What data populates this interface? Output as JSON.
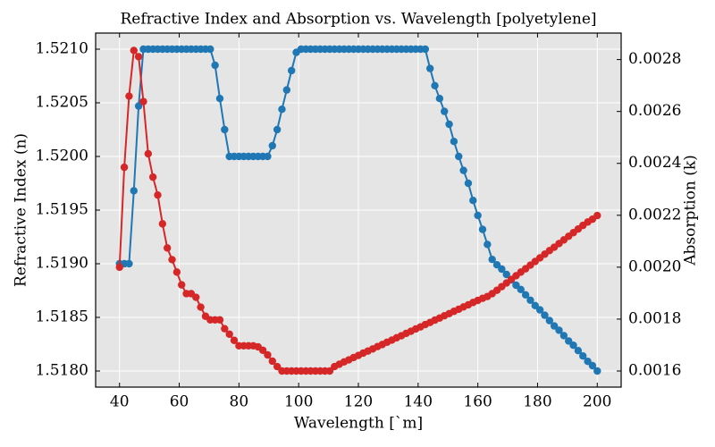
{
  "chart_data": {
    "type": "line",
    "title": "Refractive Index and Absorption vs. Wavelength [polyetylene]",
    "x_label": "Wavelength [`m]",
    "y_label": "Refractive Index (n)",
    "y2_label": "Absorption (k)",
    "grid": true,
    "x": [
      40,
      41.6,
      43.2,
      44.8,
      46.4,
      48,
      49.6,
      51.2,
      52.8,
      54.4,
      56,
      57.6,
      59.2,
      60.8,
      62.4,
      64,
      65.6,
      67.2,
      68.8,
      70.4,
      72,
      73.6,
      75.2,
      76.8,
      78.4,
      80,
      81.6,
      83.2,
      84.8,
      86.4,
      88,
      89.6,
      91.2,
      92.8,
      94.4,
      96,
      97.6,
      99.2,
      100.8,
      102.4,
      104,
      105.6,
      107.2,
      108.8,
      110.4,
      112,
      113.6,
      115.2,
      116.8,
      118.4,
      120,
      121.6,
      123.2,
      124.8,
      126.4,
      128,
      129.6,
      131.2,
      132.8,
      134.4,
      136,
      137.6,
      139.2,
      140.8,
      142.4,
      144,
      145.6,
      147.2,
      148.8,
      150.4,
      152,
      153.6,
      155.2,
      156.8,
      158.4,
      160,
      161.6,
      163.2,
      164.8,
      166.4,
      168,
      169.6,
      171.2,
      172.8,
      174.4,
      176,
      177.6,
      179.2,
      180.8,
      182.4,
      184,
      185.6,
      187.2,
      188.8,
      190.4,
      192,
      193.6,
      195.2,
      196.8,
      198.4,
      200
    ],
    "series": [
      {
        "color": "#1f77b4",
        "axis": "y",
        "values": [
          1.519,
          1.519,
          1.519,
          1.51968,
          1.52047,
          1.521,
          1.521,
          1.521,
          1.521,
          1.521,
          1.521,
          1.521,
          1.521,
          1.521,
          1.521,
          1.521,
          1.521,
          1.521,
          1.521,
          1.521,
          1.52085,
          1.52054,
          1.52025,
          1.52,
          1.52,
          1.52,
          1.52,
          1.52,
          1.52,
          1.52,
          1.52,
          1.52,
          1.5201,
          1.52025,
          1.52044,
          1.52062,
          1.5208,
          1.52097,
          1.521,
          1.521,
          1.521,
          1.521,
          1.521,
          1.521,
          1.521,
          1.521,
          1.521,
          1.521,
          1.521,
          1.521,
          1.521,
          1.521,
          1.521,
          1.521,
          1.521,
          1.521,
          1.521,
          1.521,
          1.521,
          1.521,
          1.521,
          1.521,
          1.521,
          1.521,
          1.521,
          1.52082,
          1.52066,
          1.52054,
          1.52042,
          1.5203,
          1.52014,
          1.52,
          1.51987,
          1.51975,
          1.51959,
          1.51945,
          1.51932,
          1.51918,
          1.51904,
          1.51899,
          1.51895,
          1.5189,
          1.51885,
          1.5188,
          1.51876,
          1.51871,
          1.51866,
          1.51861,
          1.51857,
          1.51852,
          1.51847,
          1.51842,
          1.51838,
          1.51833,
          1.51828,
          1.51824,
          1.51819,
          1.51814,
          1.51809,
          1.51805,
          1.518
        ]
      },
      {
        "color": "#d62728",
        "axis": "y2",
        "values": [
          0.002,
          0.002385,
          0.002659,
          0.002835,
          0.002811,
          0.002638,
          0.002437,
          0.002347,
          0.002278,
          0.002167,
          0.002074,
          0.002029,
          0.001981,
          0.001932,
          0.001898,
          0.001898,
          0.001884,
          0.001846,
          0.001811,
          0.001797,
          0.001797,
          0.001797,
          0.001763,
          0.001742,
          0.001718,
          0.001697,
          0.001697,
          0.001697,
          0.001697,
          0.001693,
          0.00168,
          0.001662,
          0.001638,
          0.001617,
          0.0016,
          0.0016,
          0.0016,
          0.0016,
          0.0016,
          0.0016,
          0.0016,
          0.0016,
          0.0016,
          0.0016,
          0.0016,
          0.001617,
          0.001626,
          0.001635,
          0.001643,
          0.001652,
          0.00166,
          0.001669,
          0.001677,
          0.001685,
          0.001694,
          0.001702,
          0.001711,
          0.001719,
          0.001728,
          0.001736,
          0.001745,
          0.001753,
          0.001762,
          0.00177,
          0.001779,
          0.001787,
          0.001796,
          0.001804,
          0.001813,
          0.001821,
          0.00183,
          0.001838,
          0.001847,
          0.001855,
          0.001864,
          0.001872,
          0.00188,
          0.001887,
          0.001898,
          0.001911,
          0.001925,
          0.001939,
          0.001953,
          0.001967,
          0.001981,
          0.001994,
          0.002008,
          0.002022,
          0.002036,
          0.00205,
          0.002064,
          0.002077,
          0.002091,
          0.002105,
          0.002119,
          0.002133,
          0.002147,
          0.002161,
          0.002174,
          0.002185,
          0.002199
        ]
      }
    ],
    "xlim": [
      32,
      208
    ],
    "xticks": [
      40,
      60,
      80,
      100,
      120,
      140,
      160,
      180,
      200
    ],
    "ylim": [
      1.51785,
      1.52115
    ],
    "yticks": [
      {
        "value": 1.518,
        "label": "1.5180"
      },
      1.5185,
      {
        "value": 1.519,
        "label": "1.5190"
      },
      1.5195,
      {
        "value": 1.52,
        "label": "1.5200"
      },
      1.5205,
      {
        "value": 1.521,
        "label": "1.5210"
      }
    ],
    "y2lim": [
      0.001538,
      0.002902
    ],
    "y2ticks": [
      0.0016,
      0.0018,
      {
        "value": 0.002,
        "label": "0.0020"
      },
      0.0022,
      0.0024,
      0.0026,
      0.0028
    ]
  }
}
